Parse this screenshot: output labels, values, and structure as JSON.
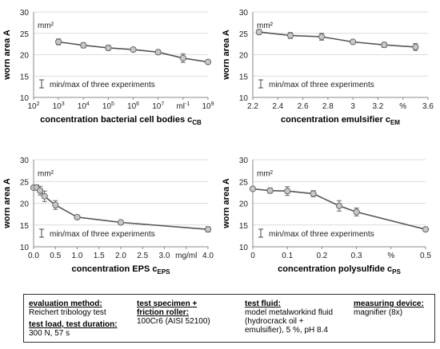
{
  "chart_data": [
    {
      "type": "line",
      "ylabel": "worn area A",
      "yunit": "mm²",
      "ylim": [
        10,
        30
      ],
      "yticks": [
        "10",
        "15",
        "20",
        "25",
        "30"
      ],
      "xlabel_main": "concentration bacterial cell bodies c",
      "xlabel_sub": "CB",
      "xscale": "log",
      "xlim": [
        100,
        1000000000
      ],
      "xticks": [
        {
          "v": 100,
          "pre": "10",
          "sup": "2"
        },
        {
          "v": 1000,
          "pre": "10",
          "sup": "3"
        },
        {
          "v": 10000,
          "pre": "10",
          "sup": "4"
        },
        {
          "v": 100000,
          "pre": "10",
          "sup": "5"
        },
        {
          "v": 1000000,
          "pre": "10",
          "sup": "6"
        },
        {
          "v": 10000000,
          "pre": "10",
          "sup": "7"
        },
        {
          "v": 100000000,
          "pre": "ml",
          "sup": "-1"
        },
        {
          "v": 1000000000,
          "pre": "10",
          "sup": "9"
        }
      ],
      "x": [
        1000,
        10000,
        100000,
        1000000,
        10000000,
        100000000,
        1000000000
      ],
      "y": [
        23.0,
        22.2,
        21.6,
        21.2,
        20.6,
        19.2,
        18.3
      ],
      "err": [
        0.7,
        0.6,
        0.6,
        0.3,
        0.5,
        1.0,
        0.3
      ],
      "legend": "min/max of three experiments",
      "grid": true,
      "color": "#555555"
    },
    {
      "type": "line",
      "ylabel": "worn area A",
      "yunit": "mm²",
      "ylim": [
        10,
        30
      ],
      "yticks": [
        "10",
        "15",
        "20",
        "25",
        "30"
      ],
      "xlabel_main": "concentration emulsifier c",
      "xlabel_sub": "EM",
      "xscale": "linear",
      "xlim": [
        2.2,
        3.6
      ],
      "xticks": [
        {
          "v": 2.2,
          "pre": "2.2"
        },
        {
          "v": 2.4,
          "pre": "2.4"
        },
        {
          "v": 2.6,
          "pre": "2.6"
        },
        {
          "v": 2.8,
          "pre": "2.8"
        },
        {
          "v": 3.0,
          "pre": "3"
        },
        {
          "v": 3.2,
          "pre": "3.2"
        },
        {
          "v": 3.4,
          "pre": "%"
        },
        {
          "v": 3.6,
          "pre": "3.6"
        }
      ],
      "x": [
        2.25,
        2.5,
        2.75,
        3.0,
        3.25,
        3.5
      ],
      "y": [
        25.3,
        24.5,
        24.2,
        23.0,
        22.3,
        21.8
      ],
      "err": [
        0.6,
        0.7,
        0.8,
        0.2,
        0.6,
        0.8
      ],
      "legend": "min/max of three experiments",
      "grid": true,
      "color": "#555555"
    },
    {
      "type": "line",
      "ylabel": "worn area A",
      "yunit": "mm²",
      "ylim": [
        10,
        30
      ],
      "yticks": [
        "10",
        "15",
        "20",
        "25",
        "30"
      ],
      "xlabel_main": "concentration EPS c",
      "xlabel_sub": "EPS",
      "xscale": "linear",
      "xlim": [
        0,
        4
      ],
      "xticks": [
        {
          "v": 0,
          "pre": "0.0"
        },
        {
          "v": 0.5,
          "pre": "0.5"
        },
        {
          "v": 1.0,
          "pre": "1.0"
        },
        {
          "v": 1.5,
          "pre": "1.5"
        },
        {
          "v": 2.0,
          "pre": "2.0"
        },
        {
          "v": 2.5,
          "pre": "2.5"
        },
        {
          "v": 3.0,
          "pre": "3.0"
        },
        {
          "v": 3.5,
          "pre": "mg/ml"
        },
        {
          "v": 4.0,
          "pre": "4.0"
        }
      ],
      "x": [
        0.0,
        0.07,
        0.15,
        0.25,
        0.5,
        1.0,
        2.0,
        4.0
      ],
      "y": [
        23.6,
        23.6,
        22.9,
        21.6,
        19.6,
        16.8,
        15.6,
        14.0
      ],
      "err": [
        0.3,
        0.6,
        1.0,
        1.2,
        1.0,
        0.3,
        0.4,
        0.6
      ],
      "legend": "min/max of three experiments",
      "grid": true,
      "color": "#555555"
    },
    {
      "type": "line",
      "ylabel": "worn area A",
      "yunit": "mm²",
      "ylim": [
        10,
        30
      ],
      "yticks": [
        "10",
        "15",
        "20",
        "25",
        "30"
      ],
      "xlabel_main": "concentration polysulfide c",
      "xlabel_sub": "PS",
      "xscale": "linear",
      "xlim": [
        0,
        0.5
      ],
      "xticks": [
        {
          "v": 0,
          "pre": "0"
        },
        {
          "v": 0.1,
          "pre": "0.1"
        },
        {
          "v": 0.2,
          "pre": "0.2"
        },
        {
          "v": 0.3,
          "pre": "0.3"
        },
        {
          "v": 0.4,
          "pre": "%"
        },
        {
          "v": 0.5,
          "pre": "0.5"
        }
      ],
      "x": [
        0.0,
        0.05,
        0.1,
        0.175,
        0.25,
        0.3,
        0.5
      ],
      "y": [
        23.3,
        22.9,
        22.8,
        22.2,
        19.4,
        18.0,
        14.0
      ],
      "err": [
        0.2,
        0.6,
        1.0,
        0.7,
        1.2,
        0.9,
        0.3
      ],
      "legend": "min/max of three experiments",
      "grid": true,
      "color": "#555555"
    }
  ],
  "info": {
    "eval_label": "evaluation method",
    "eval_value": "Reichert tribology test",
    "load_label": "test load, test duration",
    "load_value": "300 N, 57 s",
    "spec_label_1": "test specimen +",
    "spec_label_2": "friction roller",
    "spec_value": "100Cr6 (AISI 52100)",
    "fluid_label": "test fluid",
    "fluid_value_1": "model metalworkind fluid",
    "fluid_value_2": "(hydrocrack oil +",
    "fluid_value_3": "emulsifier), 5 %, pH 8.4",
    "device_label": "measuring device",
    "device_value": "magnifier (8x)"
  }
}
